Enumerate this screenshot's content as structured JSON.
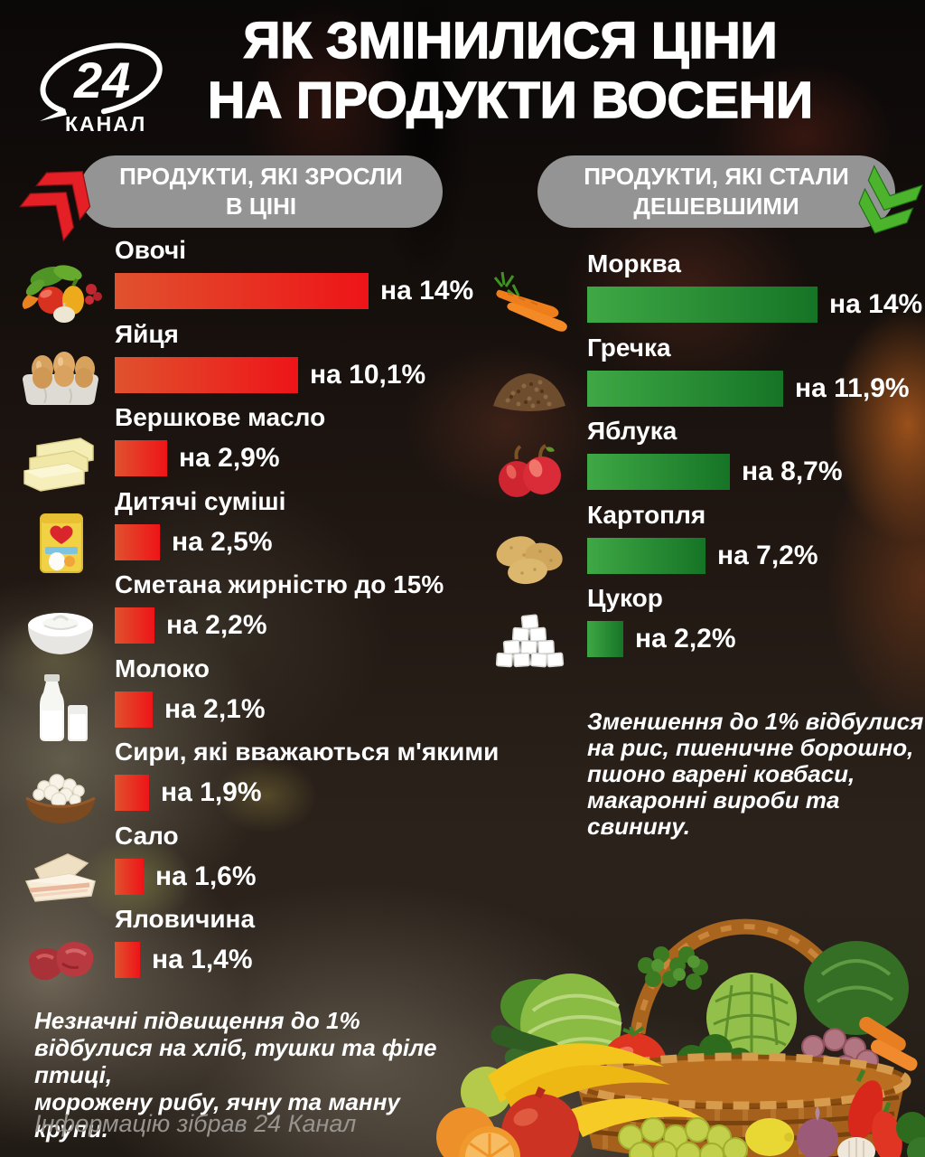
{
  "logo": {
    "number": "24",
    "word": "КАНАЛ"
  },
  "title": {
    "line1": "ЯК ЗМІНИЛИСЯ ЦІНИ",
    "line2": "НА ПРОДУКТИ ВОСЕНИ"
  },
  "increased": {
    "header": {
      "line1": "ПРОДУКТИ, ЯКІ ЗРОСЛИ",
      "line2": "В ЦІНІ"
    },
    "items": [
      {
        "name": "Овочі",
        "icon": "vegetables",
        "value": 14,
        "pct_label": "на 14%"
      },
      {
        "name": "Яйця",
        "icon": "eggs",
        "value": 10.1,
        "pct_label": "на 10,1%"
      },
      {
        "name": "Вершкове масло",
        "icon": "butter",
        "value": 2.9,
        "pct_label": "на 2,9%"
      },
      {
        "name": "Дитячі суміші",
        "icon": "baby-formula",
        "value": 2.5,
        "pct_label": "на 2,5%"
      },
      {
        "name": "Сметана жирністю до 15%",
        "icon": "sour-cream",
        "value": 2.2,
        "pct_label": "на 2,2%"
      },
      {
        "name": "Молоко",
        "icon": "milk",
        "value": 2.1,
        "pct_label": "на 2,1%"
      },
      {
        "name": "Сири, які вважаються м'якими",
        "icon": "soft-cheese",
        "value": 1.9,
        "pct_label": "на 1,9%"
      },
      {
        "name": "Сало",
        "icon": "salo",
        "value": 1.6,
        "pct_label": "на 1,6%"
      },
      {
        "name": "Яловичина",
        "icon": "beef",
        "value": 1.4,
        "pct_label": "на 1,4%"
      }
    ],
    "footnote_lines": [
      "Незначні підвищення до 1%",
      "відбулися на хліб, тушки та філе птиці,",
      "морожену рибу, ячну та манну крупи."
    ]
  },
  "decreased": {
    "header": {
      "line1": "ПРОДУКТИ, ЯКІ СТАЛИ",
      "line2": "ДЕШЕВШИМИ"
    },
    "items": [
      {
        "name": "Морква",
        "icon": "carrots",
        "value": 14,
        "pct_label": "на 14%"
      },
      {
        "name": "Гречка",
        "icon": "buckwheat",
        "value": 11.9,
        "pct_label": "на 11,9%"
      },
      {
        "name": "Яблука",
        "icon": "apples",
        "value": 8.7,
        "pct_label": "на 8,7%"
      },
      {
        "name": "Картопля",
        "icon": "potatoes",
        "value": 7.2,
        "pct_label": "на 7,2%"
      },
      {
        "name": "Цукор",
        "icon": "sugar",
        "value": 2.2,
        "pct_label": "на 2,2%"
      }
    ],
    "footnote_lines": [
      "Зменшення до 1% відбулися",
      "на рис, пшеничне борошно,",
      "пшоно варені ковбаси,",
      "макаронні вироби та свинину."
    ]
  },
  "credit": "Інформацію зібрав 24 Канал",
  "colors": {
    "bar_up_start": "#e0522e",
    "bar_up_end": "#ee1418",
    "bar_down_start": "#3fa845",
    "bar_down_end": "#157426",
    "pill_bg": "rgba(154,154,154,0.96)",
    "arrow_up": "#e42026",
    "arrow_down": "#4cb32c"
  },
  "chart_data": [
    {
      "type": "bar",
      "orientation": "horizontal",
      "title": "ПРОДУКТИ, ЯКІ ЗРОСЛИ В ЦІНІ",
      "categories": [
        "Овочі",
        "Яйця",
        "Вершкове масло",
        "Дитячі суміші",
        "Сметана жирністю до 15%",
        "Молоко",
        "Сири, які вважаються м'якими",
        "Сало",
        "Яловичина"
      ],
      "values": [
        14,
        10.1,
        2.9,
        2.5,
        2.2,
        2.1,
        1.9,
        1.6,
        1.4
      ],
      "unit": "%",
      "value_label_prefix": "на",
      "bar_color": "red gradient",
      "xlim": [
        0,
        14
      ]
    },
    {
      "type": "bar",
      "orientation": "horizontal",
      "title": "ПРОДУКТИ, ЯКІ СТАЛИ ДЕШЕВШИМИ",
      "categories": [
        "Морква",
        "Гречка",
        "Яблука",
        "Картопля",
        "Цукор"
      ],
      "values": [
        14,
        11.9,
        8.7,
        7.2,
        2.2
      ],
      "unit": "%",
      "value_label_prefix": "на",
      "bar_color": "green gradient",
      "xlim": [
        0,
        14
      ]
    }
  ]
}
